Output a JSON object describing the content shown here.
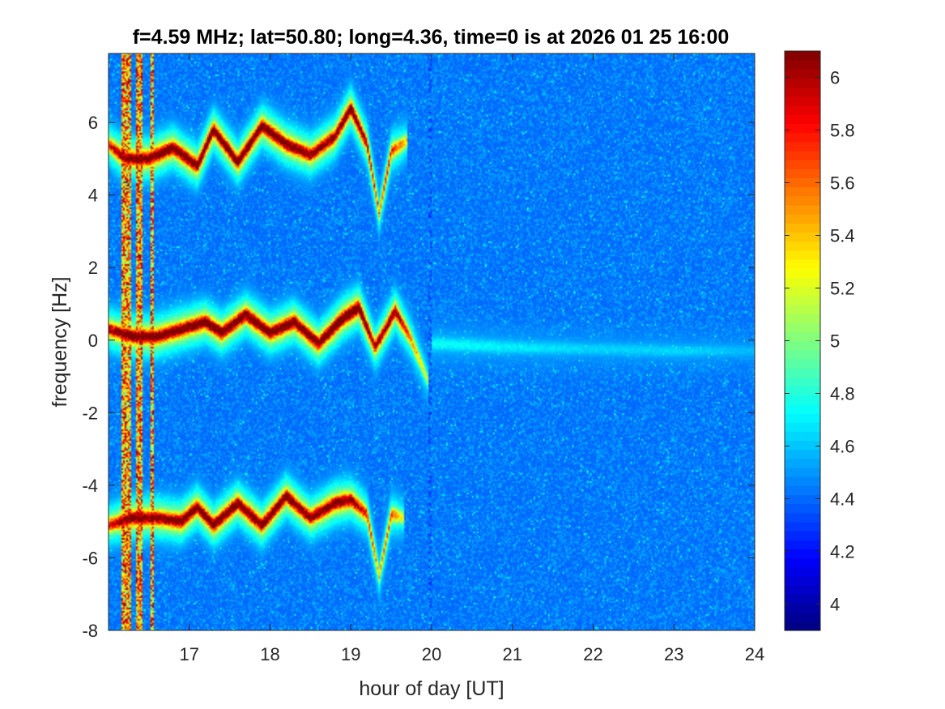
{
  "chart_data": {
    "type": "heatmap",
    "title": "f=4.59 MHz;  lat=50.80; long=4.36, time=0 is at 2026 01 25 16:00",
    "xlabel": "hour of day [UT]",
    "ylabel": "frequency [Hz]",
    "xlim": [
      16,
      24
    ],
    "ylim": [
      -8,
      7.9
    ],
    "x_ticks": [
      17,
      18,
      19,
      20,
      21,
      22,
      23,
      24
    ],
    "y_ticks": [
      -8,
      -6,
      -4,
      -2,
      0,
      2,
      4,
      6
    ],
    "colorbar": {
      "colormap": "jet",
      "clim": [
        3.9,
        6.1
      ],
      "ticks": [
        4,
        4.2,
        4.4,
        4.6,
        4.8,
        5,
        5.2,
        5.4,
        5.6,
        5.8,
        6
      ]
    },
    "background_level": 4.4,
    "vertical_interference_lines_hours": [
      16.18,
      16.22,
      16.26,
      16.36,
      16.4,
      16.54
    ],
    "echo_bands": [
      {
        "name": "",
        "hours": [
          16.0,
          16.2,
          16.5,
          16.8,
          17.1,
          17.3,
          17.6,
          17.9,
          18.2,
          18.5,
          18.8,
          19.0,
          19.2,
          19.35,
          19.5,
          19.7
        ],
        "frequency_hz": [
          5.4,
          5.0,
          5.0,
          5.3,
          4.8,
          5.8,
          4.9,
          5.9,
          5.4,
          5.1,
          5.6,
          6.4,
          5.4,
          3.5,
          5.2,
          5.5
        ],
        "intensity": [
          5.6,
          5.9,
          6.0,
          6.0,
          6.0,
          6.0,
          6.0,
          6.0,
          6.0,
          5.9,
          5.9,
          6.0,
          5.8,
          5.4,
          5.6,
          5.2
        ]
      },
      {
        "name": "",
        "hours": [
          16.0,
          16.3,
          16.6,
          16.9,
          17.2,
          17.4,
          17.7,
          18.0,
          18.3,
          18.6,
          18.9,
          19.1,
          19.3,
          19.55,
          19.75,
          19.95
        ],
        "frequency_hz": [
          0.3,
          0.1,
          0.1,
          0.3,
          0.5,
          0.2,
          0.7,
          0.2,
          0.5,
          -0.1,
          0.6,
          0.9,
          -0.2,
          0.8,
          0.0,
          -1.1
        ],
        "intensity": [
          5.8,
          6.0,
          6.0,
          6.0,
          6.0,
          6.0,
          6.0,
          6.0,
          6.0,
          6.0,
          6.1,
          6.1,
          5.8,
          5.9,
          5.4,
          5.0
        ]
      },
      {
        "name": "",
        "hours": [
          16.0,
          16.3,
          16.6,
          16.9,
          17.1,
          17.3,
          17.6,
          17.9,
          18.2,
          18.5,
          18.8,
          19.0,
          19.2,
          19.35,
          19.5,
          19.65
        ],
        "frequency_hz": [
          -5.1,
          -4.9,
          -4.9,
          -5.0,
          -4.6,
          -5.1,
          -4.5,
          -5.1,
          -4.3,
          -4.9,
          -4.5,
          -4.4,
          -4.8,
          -6.5,
          -4.8,
          -4.9
        ],
        "intensity": [
          5.6,
          6.0,
          5.9,
          6.0,
          6.0,
          6.0,
          6.0,
          6.0,
          6.0,
          5.9,
          6.0,
          5.9,
          5.6,
          5.3,
          5.5,
          5.1
        ]
      },
      {
        "name": "",
        "hours": [
          20.0,
          21.0,
          22.0,
          23.0,
          24.0
        ],
        "frequency_hz": [
          -0.1,
          -0.2,
          -0.25,
          -0.3,
          -0.3
        ],
        "intensity": [
          4.7,
          4.65,
          4.6,
          4.6,
          4.55
        ]
      }
    ]
  }
}
